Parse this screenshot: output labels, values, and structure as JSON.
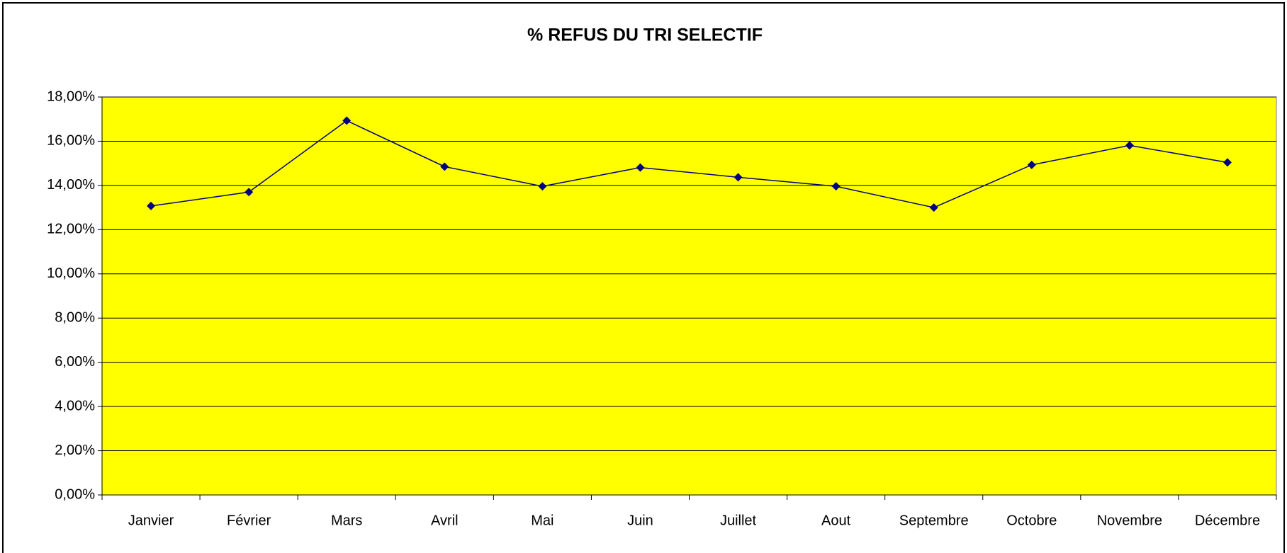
{
  "chart_data": {
    "type": "line",
    "title": "% REFUS DU TRI SELECTIF",
    "categories": [
      "Janvier",
      "Février",
      "Mars",
      "Avril",
      "Mai",
      "Juin",
      "Juillet",
      "Aout",
      "Septembre",
      "Octobre",
      "Novembre",
      "Décembre"
    ],
    "series": [
      {
        "color": "#000080",
        "values": [
          13.07,
          13.7,
          16.93,
          14.85,
          13.96,
          14.81,
          14.37,
          13.96,
          13.0,
          14.93,
          15.81,
          15.04
        ]
      }
    ],
    "ylim": [
      0,
      18
    ],
    "yticks": [
      {
        "value": 0,
        "label": "0,00%"
      },
      {
        "value": 2,
        "label": "2,00%"
      },
      {
        "value": 4,
        "label": "4,00%"
      },
      {
        "value": 6,
        "label": "6,00%"
      },
      {
        "value": 8,
        "label": "8,00%"
      },
      {
        "value": 10,
        "label": "10,00%"
      },
      {
        "value": 12,
        "label": "12,00%"
      },
      {
        "value": 14,
        "label": "14,00%"
      },
      {
        "value": 16,
        "label": "16,00%"
      },
      {
        "value": 18,
        "label": "18,00%"
      }
    ],
    "grid": true,
    "plot_background": "#ffff00"
  }
}
